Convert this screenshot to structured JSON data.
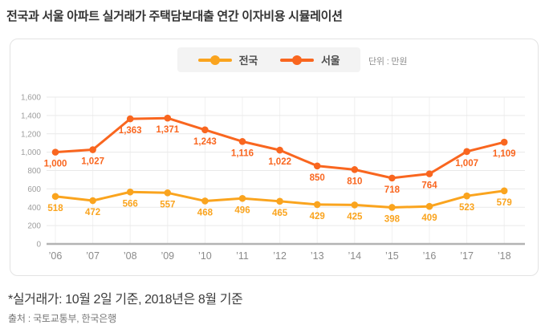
{
  "page": {
    "title": "전국과 서울 아파트 실거래가 주택담보대출 연간 이자비용 시뮬레이션",
    "footnote": "*실거래가: 10월 2일 기준, 2018년은 8월 기준",
    "source": "출처 : 국토교통부, 한국은행"
  },
  "legend": {
    "items": [
      {
        "label": "전국",
        "color": "#FAA41E"
      },
      {
        "label": "서울",
        "color": "#F9661F"
      }
    ],
    "unit_label": "단위 : 만원"
  },
  "chart_data": {
    "type": "line",
    "title": "전국과 서울 아파트 실거래가 주택담보대출 연간 이자비용 시뮬레이션",
    "unit": "만원",
    "categories": [
      "’06",
      "’07",
      "’08",
      "’09",
      "’10",
      "’11",
      "’12",
      "’13",
      "’14",
      "’15",
      "’16",
      "’17",
      "’18"
    ],
    "series": [
      {
        "name": "전국",
        "color": "#FAA41E",
        "values": [
          518,
          472,
          566,
          557,
          468,
          496,
          465,
          429,
          425,
          398,
          409,
          523,
          579
        ]
      },
      {
        "name": "서울",
        "color": "#F9661F",
        "values": [
          1000,
          1027,
          1363,
          1371,
          1243,
          1116,
          1022,
          850,
          810,
          718,
          764,
          1007,
          1109
        ]
      }
    ],
    "ylim": [
      0,
      1600
    ],
    "ytick_step": 200,
    "grid": true,
    "data_labels": true,
    "legend_position": "top-center",
    "colors": {
      "grid": "#e9e9e9",
      "vertical_grid": "#f0f0f0",
      "baseline": "#b3b3b3",
      "ytick_text": "#9e9e9e",
      "xtick_text": "#8a8a8a"
    }
  }
}
